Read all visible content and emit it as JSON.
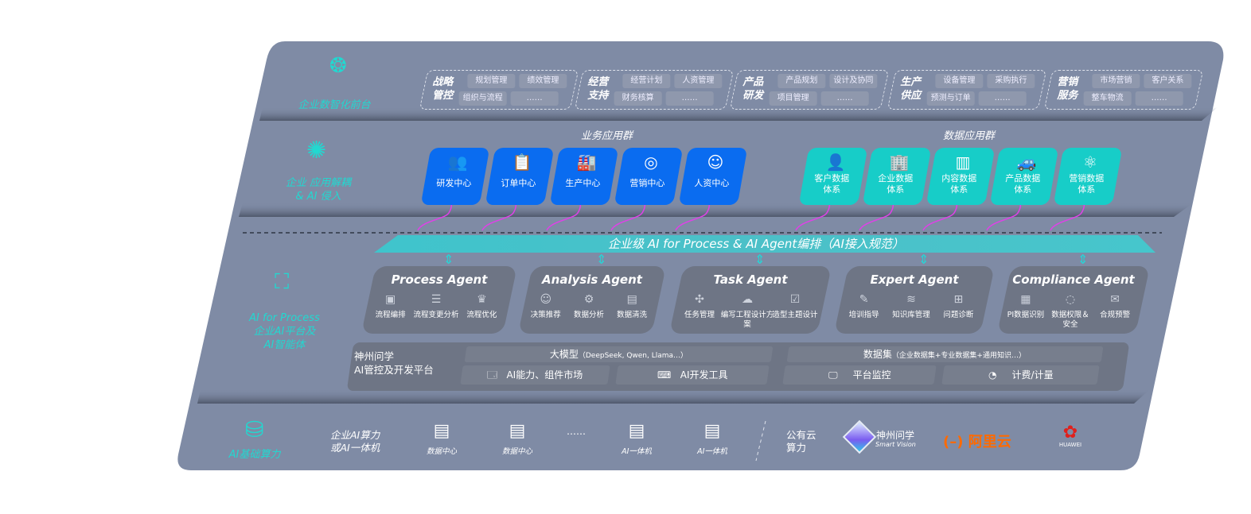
{
  "colors": {
    "panel": "#7f8ba5",
    "accent_teal": "#22d8d0",
    "business_blue": "#0a6cf0",
    "data_teal": "#17cdc8",
    "agent_box": "#6e7585",
    "connector_magenta": "#e040e8",
    "aliyun_orange": "#ff6a00",
    "huawei_red": "#e0201c"
  },
  "front": {
    "label": "企业数智化前台",
    "icon": "brain-icon",
    "groups": [
      {
        "title": "战略\n管控",
        "items": [
          "规划管理",
          "绩效管理",
          "组织与流程",
          "……"
        ]
      },
      {
        "title": "经营\n支持",
        "items": [
          "经营计划",
          "人资管理",
          "财务核算",
          "……"
        ]
      },
      {
        "title": "产品\n研发",
        "items": [
          "产品规划",
          "设计及协同",
          "项目管理",
          "……"
        ]
      },
      {
        "title": "生产\n供应",
        "items": [
          "设备管理",
          "采购执行",
          "预测与订单",
          "……"
        ]
      },
      {
        "title": "营销\n服务",
        "items": [
          "市场营销",
          "客户关系",
          "整车物流",
          "……"
        ]
      }
    ]
  },
  "apps": {
    "label": "企业 应用解耦\n& AI 侵入",
    "icon": "molecule-icon",
    "business_title": "业务应用群",
    "business": [
      {
        "label": "研发中心",
        "icon": "users-icon"
      },
      {
        "label": "订单中心",
        "icon": "clipboard-icon"
      },
      {
        "label": "生产中心",
        "icon": "factory-icon"
      },
      {
        "label": "营销中心",
        "icon": "target-icon"
      },
      {
        "label": "人资中心",
        "icon": "person-icon"
      }
    ],
    "data_title": "数据应用群",
    "data": [
      {
        "label": "客户数据\n体系",
        "icon": "user-icon"
      },
      {
        "label": "企业数据\n体系",
        "icon": "building-icon"
      },
      {
        "label": "内容数据\n体系",
        "icon": "books-icon"
      },
      {
        "label": "产品数据\n体系",
        "icon": "car-icon"
      },
      {
        "label": "营销数据\n体系",
        "icon": "atom-icon"
      }
    ]
  },
  "banner": "企业级 AI for Process & AI Agent编排（AI接入规范）",
  "ai": {
    "label": "AI for Process\n企业AI平台及\nAI智能体",
    "icon": "face-scan-icon",
    "agents": [
      {
        "title": "Process Agent",
        "features": [
          "流程编排",
          "流程变更分析",
          "流程优化"
        ]
      },
      {
        "title": "Analysis Agent",
        "features": [
          "决策推荐",
          "数据分析",
          "数据清洗"
        ]
      },
      {
        "title": "Task Agent",
        "features": [
          "任务管理",
          "编写工程设计方案",
          "造型主题设计"
        ]
      },
      {
        "title": "Expert Agent",
        "features": [
          "培训指导",
          "知识库管理",
          "问题诊断"
        ]
      },
      {
        "title": "Compliance Agent",
        "features": [
          "PI数据识别",
          "数据权限＆\n安全",
          "合规预警"
        ]
      }
    ],
    "platform": {
      "title": "神州问学\nAI管控及开发平台",
      "model": "大模型",
      "model_note": "（DeepSeek, Qwen, Llama…）",
      "dataset": "数据集",
      "dataset_note": "（企业数据集+专业数据集+通用知识…）",
      "market": "AI能力、组件市场",
      "devtools": "AI开发工具",
      "monitor": "平台监控",
      "billing": "计费/计量"
    }
  },
  "infra": {
    "label": "AI基础算力",
    "icon": "database-icon",
    "enterprise": "企业AI算力\n或AI一体机",
    "servers": [
      "数据中心",
      "数据中心",
      "AI一体机",
      "AI一体机"
    ],
    "ellipsis": "……",
    "public": "公有云\n算力",
    "vendors": {
      "smartvision": "神州问学",
      "smartvision_en": "Smart Vision",
      "aliyun": "阿里云",
      "huawei": "HUAWEI"
    }
  }
}
